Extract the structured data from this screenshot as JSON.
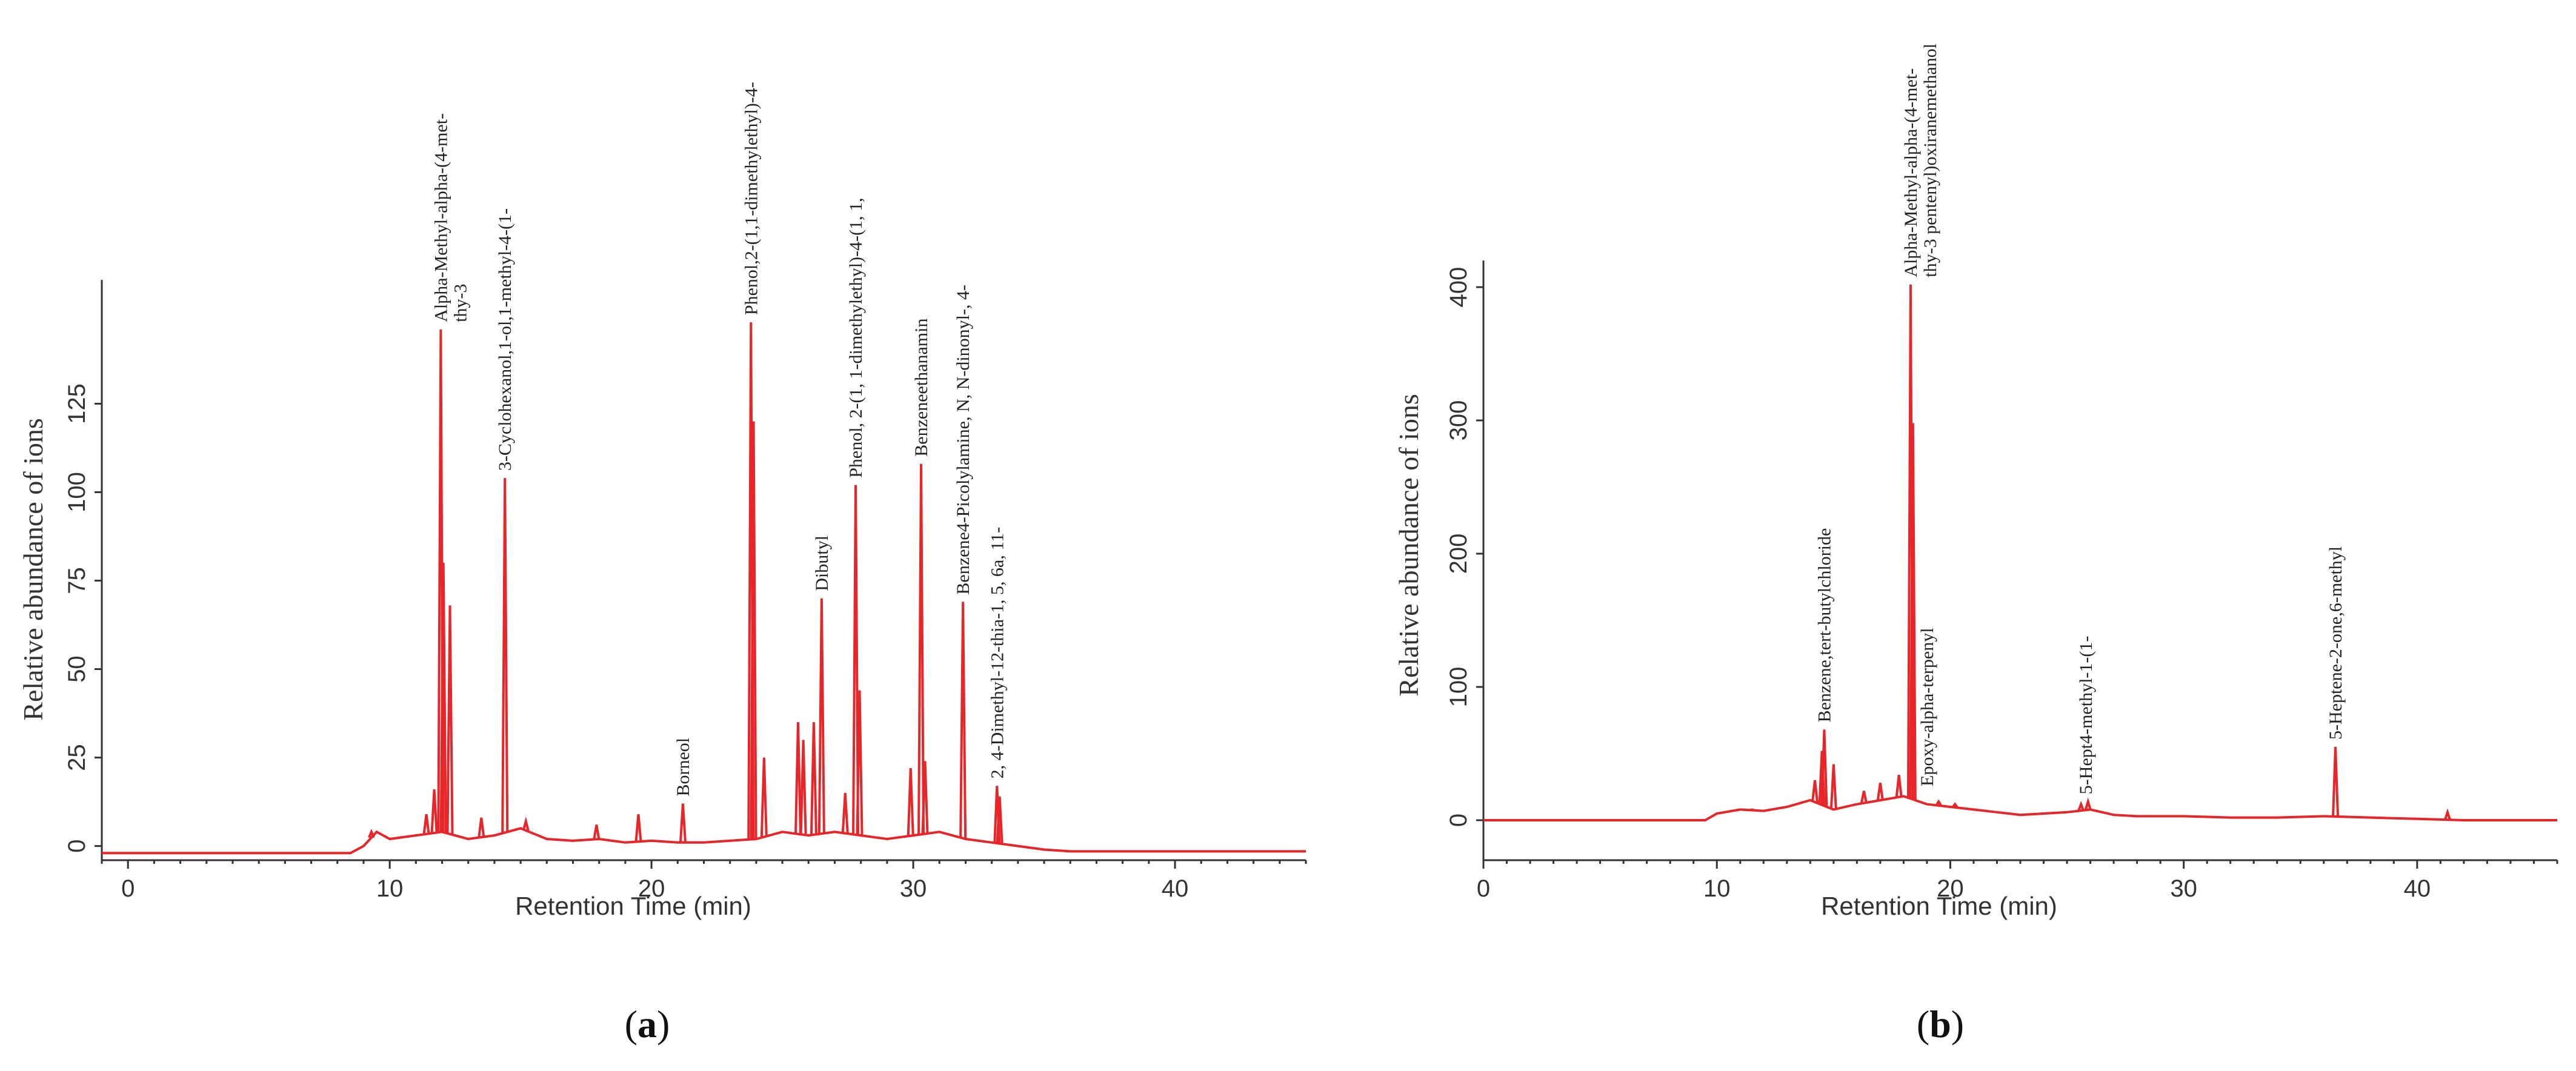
{
  "chart_data": [
    {
      "type": "line",
      "panel": "a",
      "caption": {
        "open": "(",
        "letter": "a",
        "close": ")"
      },
      "xlabel": "Retention Time (min)",
      "ylabel": "Relative abundance of ions",
      "xlim": [
        -1,
        45
      ],
      "ylim": [
        -4,
        160
      ],
      "xticks": [
        0,
        10,
        20,
        30,
        40
      ],
      "yticks": [
        0,
        25,
        50,
        75,
        100,
        125
      ],
      "color": "#e8262a",
      "grid": false,
      "series": [
        {
          "baseline": [
            [
              -1,
              -2
            ],
            [
              8.5,
              -2
            ],
            [
              9,
              0
            ],
            [
              9.5,
              4
            ],
            [
              10,
              2
            ],
            [
              11,
              3
            ],
            [
              12,
              4
            ],
            [
              13,
              2
            ],
            [
              14,
              3
            ],
            [
              15,
              5
            ],
            [
              16,
              2
            ],
            [
              17,
              1.5
            ],
            [
              18,
              2
            ],
            [
              19,
              1
            ],
            [
              20,
              1.5
            ],
            [
              21,
              1
            ],
            [
              22,
              1
            ],
            [
              23,
              1.5
            ],
            [
              24,
              2
            ],
            [
              25,
              4
            ],
            [
              26,
              3
            ],
            [
              27,
              4
            ],
            [
              28,
              3
            ],
            [
              29,
              2
            ],
            [
              30,
              3
            ],
            [
              31,
              4
            ],
            [
              32,
              2
            ],
            [
              33,
              1
            ],
            [
              34,
              0
            ],
            [
              35,
              -1
            ],
            [
              36,
              -1.5
            ],
            [
              45,
              -1.5
            ]
          ],
          "peaks": [
            [
              9.3,
              4
            ],
            [
              11.4,
              9
            ],
            [
              11.7,
              16
            ],
            [
              11.95,
              146
            ],
            [
              12.05,
              80
            ],
            [
              12.3,
              68
            ],
            [
              13.5,
              8
            ],
            [
              14.4,
              104
            ],
            [
              15.2,
              7
            ],
            [
              17.9,
              6
            ],
            [
              19.5,
              9
            ],
            [
              21.2,
              12
            ],
            [
              23.8,
              148
            ],
            [
              23.9,
              120
            ],
            [
              24.3,
              25
            ],
            [
              25.6,
              35
            ],
            [
              25.8,
              30
            ],
            [
              26.2,
              35
            ],
            [
              26.5,
              70
            ],
            [
              27.4,
              15
            ],
            [
              27.8,
              102
            ],
            [
              27.95,
              44
            ],
            [
              29.9,
              22
            ],
            [
              30.3,
              108
            ],
            [
              30.45,
              24
            ],
            [
              31.9,
              69
            ],
            [
              33.2,
              17
            ],
            [
              33.3,
              14
            ]
          ]
        }
      ],
      "annotations": [
        {
          "x": 11.95,
          "lines": [
            "Alpha-Methyl-alpha-(4-met-",
            "thy-3"
          ]
        },
        {
          "x": 14.4,
          "lines": [
            "3-Cyclohexanol,1-ol,1-methyl-4-(1-"
          ]
        },
        {
          "x": 21.2,
          "lines": [
            "Borneol"
          ]
        },
        {
          "x": 23.8,
          "lines": [
            "Phenol,2-(1,1-dimethylethyl)-4-"
          ]
        },
        {
          "x": 26.5,
          "lines": [
            "Dibutyl"
          ]
        },
        {
          "x": 27.8,
          "lines": [
            "Phenol, 2-(1, 1-dimethylethyl)-4-(1, 1,"
          ]
        },
        {
          "x": 30.3,
          "lines": [
            "Benzeneethanamin"
          ]
        },
        {
          "x": 31.9,
          "lines": [
            "Benzene4-Picolylamine, N, N-dinonyl-, 4-"
          ]
        },
        {
          "x": 33.2,
          "lines": [
            "2, 4-Dimethyl-12-thia-1, 5, 6a, 11-"
          ]
        }
      ]
    },
    {
      "type": "line",
      "panel": "b",
      "caption": {
        "open": "(",
        "letter": "b",
        "close": ")"
      },
      "xlabel": "Retention Time (min)",
      "ylabel": "Relative abundance of ions",
      "xlim": [
        0,
        46
      ],
      "ylim": [
        -30,
        420
      ],
      "xticks": [
        0,
        10,
        20,
        30,
        40
      ],
      "yticks": [
        0,
        100,
        200,
        300,
        400
      ],
      "color": "#e8262a",
      "grid": false,
      "series": [
        {
          "baseline": [
            [
              0,
              0
            ],
            [
              9.5,
              0
            ],
            [
              10,
              5
            ],
            [
              11,
              8
            ],
            [
              12,
              7
            ],
            [
              13,
              10
            ],
            [
              14,
              15
            ],
            [
              15,
              8
            ],
            [
              16,
              12
            ],
            [
              17,
              15
            ],
            [
              18,
              18
            ],
            [
              19,
              12
            ],
            [
              20,
              10
            ],
            [
              21,
              8
            ],
            [
              22,
              6
            ],
            [
              23,
              4
            ],
            [
              24,
              5
            ],
            [
              25,
              6
            ],
            [
              26,
              8
            ],
            [
              27,
              4
            ],
            [
              28,
              3
            ],
            [
              30,
              3
            ],
            [
              32,
              2
            ],
            [
              34,
              2
            ],
            [
              36,
              3
            ],
            [
              38,
              2
            ],
            [
              40,
              1
            ],
            [
              42,
              0
            ],
            [
              46,
              0
            ]
          ],
          "peaks": [
            [
              11.5,
              8
            ],
            [
              14.2,
              30
            ],
            [
              14.5,
              52
            ],
            [
              14.6,
              68
            ],
            [
              15.0,
              42
            ],
            [
              16.3,
              22
            ],
            [
              17.0,
              28
            ],
            [
              17.8,
              34
            ],
            [
              18.3,
              402
            ],
            [
              18.4,
              298
            ],
            [
              19.5,
              14
            ],
            [
              20.2,
              12
            ],
            [
              25.6,
              12
            ],
            [
              25.9,
              14
            ],
            [
              36.5,
              55
            ],
            [
              41.3,
              6
            ]
          ]
        }
      ],
      "annotations": [
        {
          "x": 14.6,
          "lines": [
            "Benzene,tert-butylchloride"
          ]
        },
        {
          "x": 18.3,
          "lines": [
            "Alpha-Methyl-alpha-(4-met-",
            "thy-3 pentenyl)oxiranemethanol"
          ]
        },
        {
          "x": 19.0,
          "lines": [
            "Epoxy-alpha-terpenyl"
          ]
        },
        {
          "x": 25.8,
          "lines": [
            "5-Hept4-methyl-1-(1-"
          ]
        },
        {
          "x": 36.5,
          "lines": [
            "5-Heptene-2-one,6-methyl"
          ]
        }
      ]
    }
  ]
}
